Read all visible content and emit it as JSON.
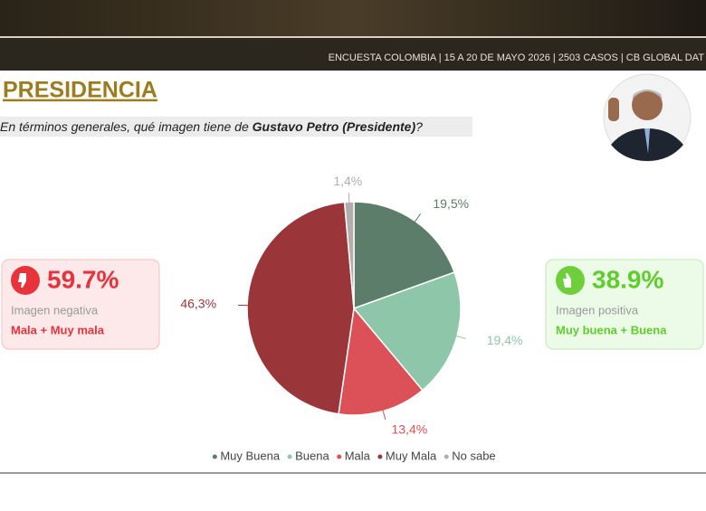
{
  "header": {
    "banner": "ENCUESTA COLOMBIA | 15 A 20 DE MAYO 2026 | 2503 CASOS | CB GLOBAL DAT",
    "title": "PRESIDENCIA",
    "question": {
      "before": "En términos generales, qué imagen tiene de ",
      "bold": "Gustavo Petro (Presidente)",
      "after": "?"
    }
  },
  "cards": {
    "negative": {
      "value": "59.7%",
      "label": "Imagen negativa",
      "detail": "Mala + Muy mala"
    },
    "positive": {
      "value": "38.9%",
      "label": "Imagen positiva",
      "detail": "Muy buena + Buena"
    }
  },
  "chart_data": {
    "type": "pie",
    "categories": [
      "Muy Buena",
      "Buena",
      "Mala",
      "Muy Mala",
      "No sabe"
    ],
    "values": [
      19.5,
      19.4,
      13.4,
      46.3,
      1.4
    ],
    "value_labels": [
      "19,5%",
      "19,4%",
      "13,4%",
      "46,3%",
      "1,4%"
    ],
    "colors": [
      "#5b7d69",
      "#8ec6a9",
      "#dc5157",
      "#9a3639",
      "#b3adad"
    ],
    "legend": "bottom"
  }
}
